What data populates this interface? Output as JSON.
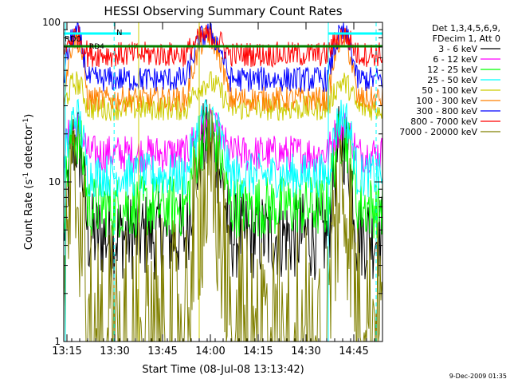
{
  "chart_data": {
    "type": "line",
    "title": "HESSI Observing Summary Count Rates",
    "xlabel": "Start Time (08-Jul-08 13:13:42)",
    "ylabel_main": "Count Rate (s",
    "ylabel_sup1": "-1",
    "ylabel_mid": " detector",
    "ylabel_sup2": "-1",
    "ylabel_end": ")",
    "y_scale": "log",
    "ylim": [
      1,
      100
    ],
    "xlim_min": [
      0,
      100
    ],
    "y_ticks": [
      {
        "value": 1,
        "label": "1"
      },
      {
        "value": 10,
        "label": "10"
      },
      {
        "value": 100,
        "label": "100"
      }
    ],
    "x_ticks": [
      {
        "min": 1,
        "label": "13:15"
      },
      {
        "min": 16,
        "label": "13:30"
      },
      {
        "min": 31,
        "label": "13:45"
      },
      {
        "min": 46,
        "label": "14:00"
      },
      {
        "min": 61,
        "label": "14:15"
      },
      {
        "min": 76,
        "label": "14:30"
      },
      {
        "min": 91,
        "label": "14:45"
      }
    ],
    "legend": {
      "position": "right",
      "header": [
        "Det 1,3,4,5,6,9,",
        "FDecim 1, Att 0"
      ]
    },
    "series": [
      {
        "name": "3 - 6 keV",
        "color": "#000000",
        "peak": 18,
        "base": 4.6,
        "noise": 0.07
      },
      {
        "name": "6 - 12 keV",
        "color": "#ff00ff",
        "peak": 22,
        "base": 15,
        "noise": 0.03
      },
      {
        "name": "12 - 25 keV",
        "color": "#00ff00",
        "peak": 20,
        "base": 7,
        "noise": 0.05
      },
      {
        "name": "25 - 50 keV",
        "color": "#00ffff",
        "peak": 26,
        "base": 11,
        "noise": 0.035
      },
      {
        "name": "50 - 100 keV",
        "color": "#cccc00",
        "peak": 42,
        "base": 29,
        "noise": 0.02
      },
      {
        "name": "100 - 300 keV",
        "color": "#ff7f00",
        "peak": 80,
        "base": 33,
        "noise": 0.02
      },
      {
        "name": "300 - 800 keV",
        "color": "#0000ff",
        "peak": 85,
        "base": 44,
        "noise": 0.02
      },
      {
        "name": "800 - 7000 keV",
        "color": "#ff0000",
        "peak": 82,
        "base": 63,
        "noise": 0.02
      },
      {
        "name": "7000 - 20000 keV",
        "color": "#808000",
        "peak": 8.5,
        "base": 1.5,
        "noise": 0.15
      }
    ],
    "intervals": {
      "night": [
        [
          0,
          7.5
        ],
        [
          38.5,
          52
        ],
        [
          83,
          92
        ]
      ],
      "saa": [
        [
          7.5,
          38.5
        ],
        [
          52,
          83
        ]
      ]
    },
    "flags": [
      {
        "label": "RD0",
        "color": "#00ffff",
        "min": 0
      },
      {
        "label": "N",
        "color": "#00ffff",
        "min": 16.5
      },
      {
        "label": "RD4",
        "color": "#008000",
        "min": 7
      }
    ],
    "vertical_lines": [
      {
        "min": 0.5,
        "color": "#00ffff",
        "style": "solid"
      },
      {
        "min": 15.8,
        "color": "#00ffff",
        "style": "dashed"
      },
      {
        "min": 83,
        "color": "#00ffff",
        "style": "solid"
      },
      {
        "min": 98,
        "color": "#00ffff",
        "style": "dashed"
      },
      {
        "min": 23.5,
        "color": "#cccc00",
        "style": "solid"
      },
      {
        "min": 42.5,
        "color": "#cccc00",
        "style": "solid"
      }
    ],
    "timestamp": "9-Dec-2009 01:35"
  }
}
